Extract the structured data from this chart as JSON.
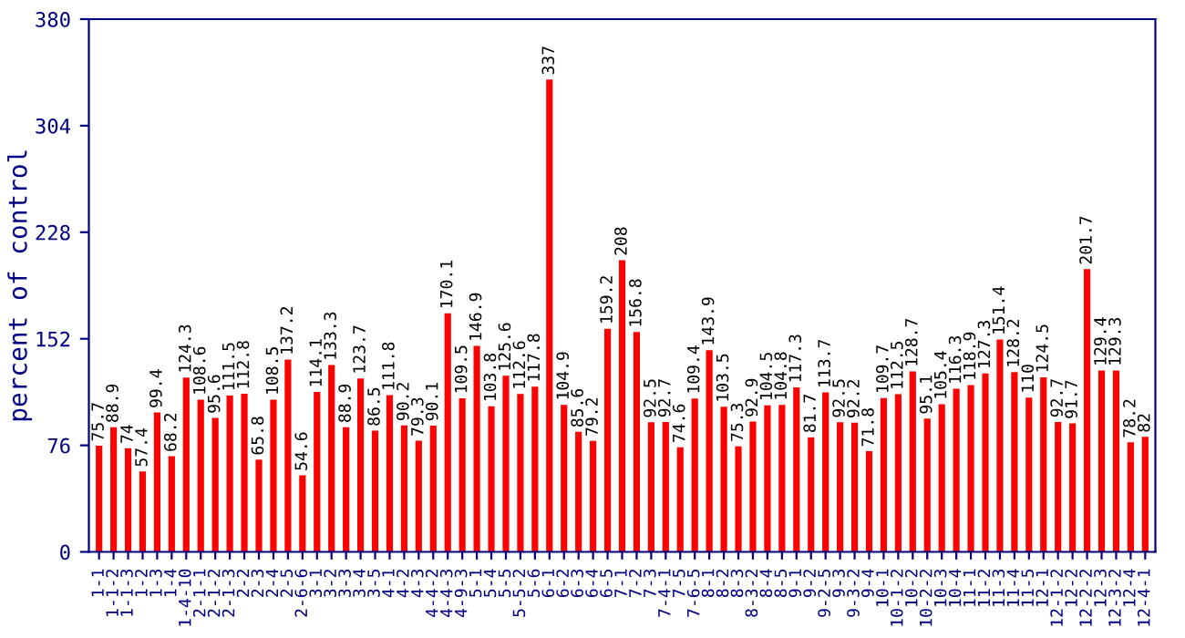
{
  "chart_data": {
    "type": "bar",
    "ylabel": "percent of control",
    "categories": [
      "1-1",
      "1-1-2",
      "1-1-3",
      "1-2",
      "1-3",
      "1-4",
      "1-4-10",
      "2-1-1",
      "2-1-2",
      "2-1-3",
      "2-2",
      "2-3",
      "2-4",
      "2-5",
      "2-6-6",
      "3-1",
      "3-2",
      "3-3",
      "3-4",
      "3-5",
      "4-1",
      "4-2",
      "4-3",
      "4-4-2",
      "4-4-3",
      "4-9-3",
      "5-1",
      "5-4",
      "5-5",
      "5-5-2",
      "5-6",
      "6-1",
      "6-2",
      "6-3",
      "6-4",
      "6-5",
      "7-1",
      "7-2",
      "7-3",
      "7-4-1",
      "7-5",
      "7-6-5",
      "8-1",
      "8-2",
      "8-3",
      "8-3-2",
      "8-4",
      "8-5",
      "9-1",
      "9-2",
      "9-2-5",
      "9-3",
      "9-3-2",
      "9-4",
      "10-1",
      "10-1-2",
      "10-2",
      "10-2-2",
      "10-3",
      "10-4",
      "11-1",
      "11-2",
      "11-3",
      "11-4",
      "11-5",
      "12-1",
      "12-1-2",
      "12-2",
      "12-2-2",
      "12-3",
      "12-3-2",
      "12-4",
      "12-4-1"
    ],
    "values": [
      75.7,
      88.9,
      74,
      57.4,
      99.4,
      68.2,
      124.3,
      108.6,
      95.6,
      111.5,
      112.8,
      65.8,
      108.5,
      137.2,
      54.6,
      114.1,
      133.3,
      88.9,
      123.7,
      86.5,
      111.8,
      90.2,
      79.3,
      90.1,
      170.1,
      109.5,
      146.9,
      103.8,
      125.6,
      112.6,
      117.8,
      337,
      104.9,
      85.6,
      79.2,
      159.2,
      208,
      156.8,
      92.5,
      92.7,
      74.6,
      109.4,
      143.9,
      103.5,
      75.3,
      92.9,
      104.5,
      104.8,
      117.3,
      81.7,
      113.7,
      92.5,
      92.2,
      71.8,
      109.7,
      112.5,
      128.7,
      95.1,
      105.4,
      116.3,
      118.9,
      127.3,
      151.4,
      128.2,
      110,
      124.5,
      92.7,
      91.7,
      201.7,
      129.4,
      129.3,
      78.2,
      82
    ],
    "color": "#ff0000",
    "data_labels": true,
    "ylim": [
      0,
      380
    ],
    "yticks": [
      0,
      76,
      152,
      228,
      304,
      380
    ],
    "grid": false,
    "legend": false
  }
}
